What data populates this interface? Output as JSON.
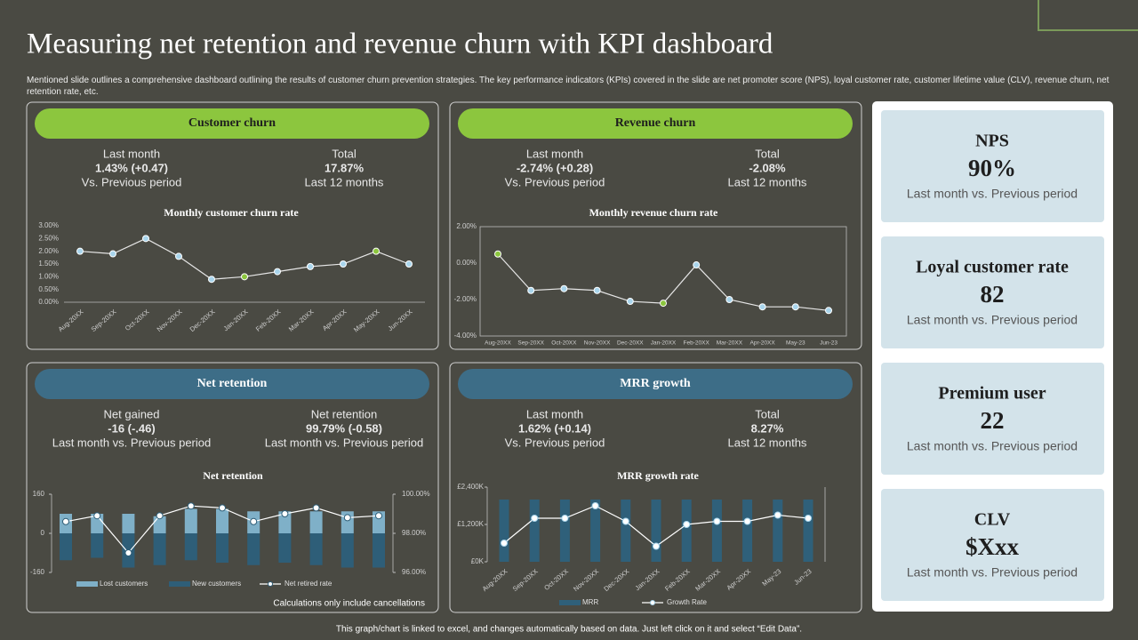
{
  "header": {
    "title": "Measuring net retention and revenue churn with KPI dashboard",
    "subtitle": "Mentioned slide outlines a comprehensive dashboard outlining the results of customer churn prevention strategies. The key performance indicators (KPIs) covered in the slide are net promoter score (NPS), loyal customer rate, customer lifetime value (CLV), revenue churn, net retention rate, etc."
  },
  "panels": [
    {
      "title": "Customer churn",
      "color": "#8cc63e",
      "stats": [
        {
          "label": "Last month",
          "value": "1.43% (+0.47)",
          "note": "Vs. Previous period"
        },
        {
          "label": "Total",
          "value": "17.87%",
          "note": "Last 12 months"
        }
      ]
    },
    {
      "title": "Revenue churn",
      "color": "#8cc63e",
      "stats": [
        {
          "label": "Last month",
          "value": "-2.74% (+0.28)",
          "note": "Vs. Previous period"
        },
        {
          "label": "Total",
          "value": "-2.08%",
          "note": "Last 12 months"
        }
      ]
    },
    {
      "title": "Net retention",
      "color": "#3d6d87",
      "stats": [
        {
          "label": "Net gained",
          "value": "-16 (-.46)",
          "note": "Last month vs. Previous period"
        },
        {
          "label": "Net retention",
          "value": "99.79% (-0.58)",
          "note": "Last month vs. Previous period"
        }
      ]
    },
    {
      "title": "MRR growth",
      "color": "#3d6d87",
      "stats": [
        {
          "label": "Last month",
          "value": "1.62% (+0.14)",
          "note": "Vs. Previous period"
        },
        {
          "label": "Total",
          "value": "8.27%",
          "note": "Last 12 months"
        }
      ]
    }
  ],
  "chart_data": [
    {
      "type": "line",
      "title": "Monthly customer churn rate",
      "categories": [
        "Aug-20XX",
        "Sep-20XX",
        "Oct-20XX",
        "Nov-20XX",
        "Dec-20XX",
        "Jan-20XX",
        "Feb-20XX",
        "Mar-20XX",
        "Apr-20XX",
        "May-20XX",
        "Jun-20XX"
      ],
      "values": [
        2.0,
        1.9,
        2.5,
        1.8,
        0.9,
        1.0,
        1.2,
        1.4,
        1.5,
        2.0,
        1.5
      ],
      "color": "#e6e6e6",
      "point_colors": [
        "#a9d5ec",
        "#a9d5ec",
        "#a9d5ec",
        "#a9d5ec",
        "#a9d5ec",
        "#8cc63e",
        "#a9d5ec",
        "#a9d5ec",
        "#a9d5ec",
        "#8cc63e",
        "#a9d5ec"
      ],
      "ylim": [
        0,
        3
      ],
      "yticks": [
        {
          "value": 0,
          "label": "0.00%"
        },
        {
          "value": 0.5,
          "label": "0.50%"
        },
        {
          "value": 1,
          "label": "1.00%"
        },
        {
          "value": 1.5,
          "label": "1.50%"
        },
        {
          "value": 2,
          "label": "2.00%"
        },
        {
          "value": 2.5,
          "label": "2.50%"
        },
        {
          "value": 3,
          "label": "3.00%"
        }
      ]
    },
    {
      "type": "line",
      "title": "Monthly revenue churn rate",
      "categories": [
        "Aug-20XX",
        "Sep-20XX",
        "Oct-20XX",
        "Nov-20XX",
        "Dec-20XX",
        "Jan-20XX",
        "Feb-20XX",
        "Mar-20XX",
        "Apr-20XX",
        "May-23",
        "Jun-23"
      ],
      "values": [
        0.5,
        -1.5,
        -1.4,
        -1.5,
        -2.1,
        -2.2,
        -0.1,
        -2.0,
        -2.4,
        -2.4,
        -2.6
      ],
      "color": "#e6e6e6",
      "point_colors": [
        "#8cc63e",
        "#a9d5ec",
        "#a9d5ec",
        "#a9d5ec",
        "#a9d5ec",
        "#8cc63e",
        "#a9d5ec",
        "#a9d5ec",
        "#a9d5ec",
        "#a9d5ec",
        "#a9d5ec"
      ],
      "ylim": [
        -4,
        2
      ],
      "yticks": [
        {
          "value": 2,
          "label": "2.00%"
        },
        {
          "value": 0,
          "label": "0.00%"
        },
        {
          "value": -2,
          "label": "-2.00%"
        },
        {
          "value": -4,
          "label": "-4.00%"
        }
      ]
    },
    {
      "type": "combo",
      "title": "Net retention",
      "series": [
        {
          "name": "Lost customers",
          "type": "bar",
          "color": "#7fb0c8",
          "values": [
            80,
            80,
            80,
            70,
            100,
            100,
            90,
            90,
            90,
            90,
            90
          ]
        },
        {
          "name": "New customers",
          "type": "bar",
          "color": "#2e5e78",
          "values": [
            -110,
            -100,
            -140,
            -130,
            -110,
            -120,
            -130,
            -120,
            -130,
            -140,
            -140
          ]
        },
        {
          "name": "Net retired rate",
          "type": "line",
          "axis": "y2",
          "color": "#ffffff",
          "values": [
            98.6,
            98.9,
            97.0,
            98.9,
            99.4,
            99.3,
            98.6,
            99.0,
            99.3,
            98.8,
            98.9
          ]
        }
      ],
      "ylim": [
        -160,
        160
      ],
      "yticks": [
        -160,
        0,
        160
      ],
      "y2lim": [
        96,
        100
      ],
      "y2ticks": [
        {
          "value": 96,
          "label": "96.00%"
        },
        {
          "value": 98,
          "label": "98.00%"
        },
        {
          "value": 100,
          "label": "100.00%"
        }
      ]
    },
    {
      "type": "combo",
      "title": "MRR growth rate",
      "categories": [
        "Aug-20XX",
        "Sep-20XX",
        "Oct-20XX",
        "Nov-20XX",
        "Dec-20XX",
        "Jan-20XX",
        "Feb-20XX",
        "Mar-20XX",
        "Apr-20XX",
        "May-23",
        "Jun-23"
      ],
      "series": [
        {
          "name": "MRR",
          "type": "bar",
          "color": "#2f607a",
          "values": [
            2000,
            2000,
            2000,
            2000,
            2000,
            2000,
            2000,
            2000,
            2000,
            2000,
            2000
          ]
        },
        {
          "name": "Growth Rate",
          "type": "line",
          "color": "#ffffff",
          "values": [
            600,
            1400,
            1400,
            1800,
            1300,
            500,
            1200,
            1300,
            1300,
            1500,
            1400
          ]
        }
      ],
      "ylim": [
        0,
        2400
      ],
      "yticks": [
        {
          "value": 0,
          "label": "£0K"
        },
        {
          "value": 1200,
          "label": "£1,200K"
        },
        {
          "value": 2400,
          "label": "£2,400K"
        }
      ]
    }
  ],
  "kpis": [
    {
      "title": "NPS",
      "value": "90%",
      "note": "Last month vs. Previous period"
    },
    {
      "title": "Loyal customer rate",
      "value": "82",
      "note": "Last month vs. Previous period"
    },
    {
      "title": "Premium user",
      "value": "22",
      "note": "Last month vs. Previous period"
    },
    {
      "title": "CLV",
      "value": "$Xxx",
      "note": "Last month vs. Previous period"
    }
  ],
  "footnote": "Calculations only include cancellations",
  "footer": "This graph/chart is linked to excel, and changes automatically based on data. Just left click on it and select “Edit Data”."
}
